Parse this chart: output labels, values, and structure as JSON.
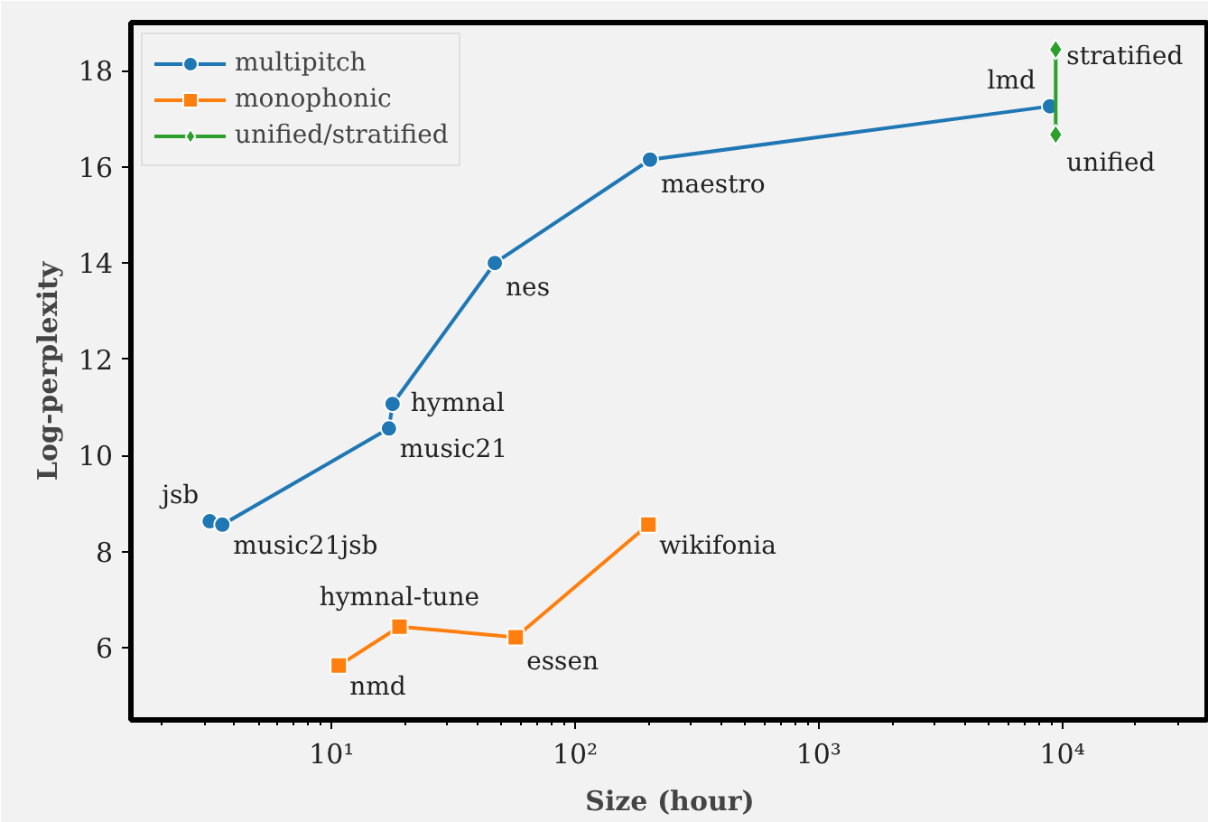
{
  "chart_data": {
    "type": "line",
    "xlabel": "Size (hour)",
    "ylabel": "Log-perplexity",
    "log": "x",
    "xlim": [
      1.5,
      40000
    ],
    "ylim": [
      4.5,
      19
    ],
    "xticks": [
      {
        "value": 10,
        "label": "10¹"
      },
      {
        "value": 100,
        "label": "10²"
      },
      {
        "value": 1000,
        "label": "10³"
      },
      {
        "value": 10000,
        "label": "10⁴"
      }
    ],
    "yticks": [
      6,
      8,
      10,
      12,
      14,
      16,
      18
    ],
    "grid": false,
    "legend": "top left",
    "line_style": "solid",
    "series": [
      {
        "name": "multipitch",
        "color": "#1f77b4",
        "marker": "circle",
        "x": [
          3.16,
          3.56,
          17.2,
          17.8,
          46.8,
          203,
          8900
        ],
        "values": [
          8.63,
          8.56,
          10.56,
          11.07,
          14.0,
          16.15,
          17.26
        ]
      },
      {
        "name": "monophonic",
        "color": "#ff7f0e",
        "marker": "square",
        "x": [
          10.7,
          19,
          57,
          200
        ],
        "values": [
          5.63,
          6.44,
          6.22,
          8.56
        ]
      },
      {
        "name": "unified/stratified",
        "color": "#2ca02c",
        "marker": "diamond",
        "x": [
          9400,
          9400
        ],
        "values": [
          16.67,
          18.44
        ]
      }
    ],
    "annotations": [
      {
        "text": "jsb",
        "x": 3.16,
        "y": 8.63
      },
      {
        "text": "music21jsb",
        "x": 3.56,
        "y": 8.56
      },
      {
        "text": "music21",
        "x": 17.2,
        "y": 10.56
      },
      {
        "text": "hymnal",
        "x": 17.8,
        "y": 11.07
      },
      {
        "text": "nes",
        "x": 46.8,
        "y": 14.0
      },
      {
        "text": "maestro",
        "x": 203,
        "y": 16.15
      },
      {
        "text": "lmd",
        "x": 8900,
        "y": 17.26
      },
      {
        "text": "nmd",
        "x": 10.7,
        "y": 5.63
      },
      {
        "text": "hymnal-tune",
        "x": 19,
        "y": 6.44
      },
      {
        "text": "essen",
        "x": 57,
        "y": 6.22
      },
      {
        "text": "wikifonia",
        "x": 200,
        "y": 8.56
      },
      {
        "text": "stratified",
        "x": 9400,
        "y": 18.44
      },
      {
        "text": "unified",
        "x": 9400,
        "y": 16.67
      }
    ]
  }
}
